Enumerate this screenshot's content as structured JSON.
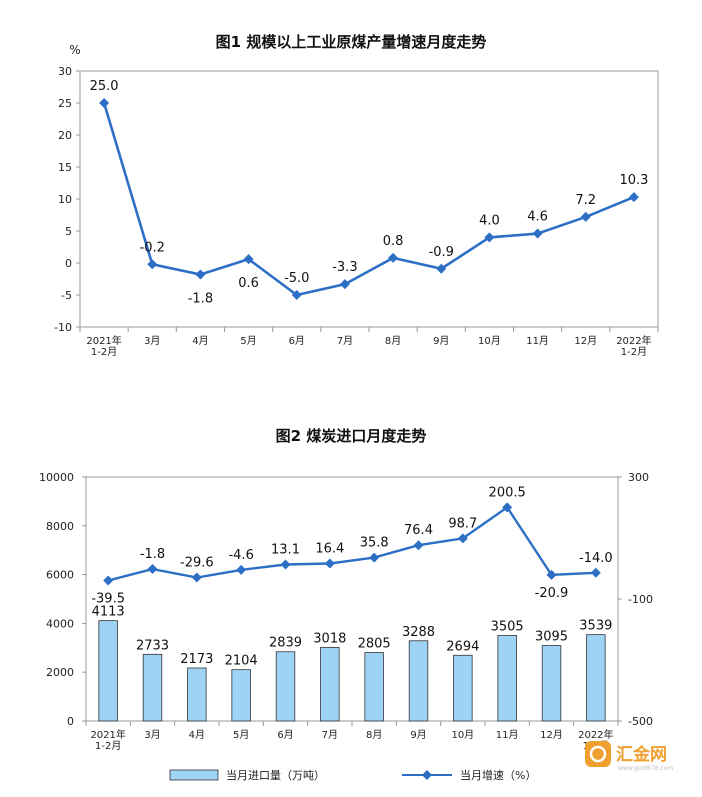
{
  "chart_data": [
    {
      "type": "line",
      "title": "图1 规模以上工业原煤产量增速月度走势",
      "ylabel": "%",
      "ylim": [
        -10,
        30
      ],
      "yticks": [
        30,
        25,
        20,
        15,
        10,
        5,
        0,
        -5,
        -10
      ],
      "categories": [
        [
          "2021年",
          "1-2月"
        ],
        [
          "3月"
        ],
        [
          "4月"
        ],
        [
          "5月"
        ],
        [
          "6月"
        ],
        [
          "7月"
        ],
        [
          "8月"
        ],
        [
          "9月"
        ],
        [
          "10月"
        ],
        [
          "11月"
        ],
        [
          "12月"
        ],
        [
          "2022年",
          "1-2月"
        ]
      ],
      "series": [
        {
          "values": [
            25.0,
            -0.2,
            -1.8,
            0.6,
            -5.0,
            -3.3,
            0.8,
            -0.9,
            4.0,
            4.6,
            7.2,
            10.3
          ],
          "labels": [
            "25.0",
            "-0.2",
            "-1.8",
            "0.6",
            "-5.0",
            "-3.3",
            "0.8",
            "-0.9",
            "4.0",
            "4.6",
            "7.2",
            "10.3"
          ]
        }
      ],
      "color": "#2e6fc6",
      "grid": false
    },
    {
      "type": "bar+line",
      "title": "图2 煤炭进口月度走势",
      "categories": [
        [
          "2021年",
          "1-2月"
        ],
        [
          "3月"
        ],
        [
          "4月"
        ],
        [
          "5月"
        ],
        [
          "6月"
        ],
        [
          "7月"
        ],
        [
          "8月"
        ],
        [
          "9月"
        ],
        [
          "10月"
        ],
        [
          "11月"
        ],
        [
          "12月"
        ],
        [
          "2022年",
          "1-2月"
        ]
      ],
      "left_ylim": [
        0,
        10000
      ],
      "left_yticks": [
        10000,
        8000,
        6000,
        4000,
        2000,
        0
      ],
      "right_ylim": [
        -500,
        300
      ],
      "right_yticks": [
        300,
        -100,
        -500
      ],
      "series": [
        {
          "name": "当月进口量（万吨）",
          "type": "bar",
          "axis": "left",
          "values": [
            4113,
            2733,
            2173,
            2104,
            2839,
            3018,
            2805,
            3288,
            2694,
            3505,
            3095,
            3539
          ],
          "labels": [
            "4113",
            "2733",
            "2173",
            "2104",
            "2839",
            "3018",
            "2805",
            "3288",
            "2694",
            "3505",
            "3095",
            "3539"
          ],
          "color": "#9fd3f5"
        },
        {
          "name": "当月增速（%）",
          "type": "line",
          "axis": "right",
          "values": [
            -39.5,
            -1.8,
            -29.6,
            -4.6,
            13.1,
            16.4,
            35.8,
            76.4,
            98.7,
            200.5,
            -20.9,
            -14.0
          ],
          "labels": [
            "-39.5",
            "-1.8",
            "-29.6",
            "-4.6",
            "13.1",
            "16.4",
            "35.8",
            "76.4",
            "98.7",
            "200.5",
            "-20.9",
            "-14.0"
          ],
          "color": "#2e6fc6"
        }
      ],
      "legend": "bottom",
      "grid": false
    }
  ],
  "watermark": {
    "text": "汇金网",
    "sub": "www.gold678.com"
  }
}
